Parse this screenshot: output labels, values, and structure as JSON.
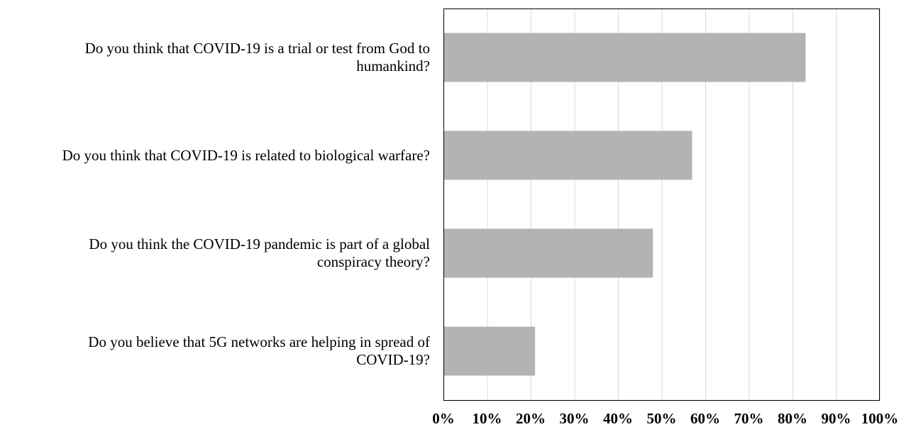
{
  "chart_data": {
    "type": "bar",
    "orientation": "horizontal",
    "categories": [
      "Do you think that COVID-19 is a trial or test from God to\nhumankind?",
      "Do you think that COVID-19 is related to biological warfare?",
      "Do you think the COVID-19 pandemic is part of a global\nconspiracy theory?",
      "Do you believe that 5G networks are helping in spread of\nCOVID-19?"
    ],
    "values": [
      83,
      57,
      48,
      21
    ],
    "title": "",
    "xlabel": "",
    "ylabel": "",
    "xlim": [
      0,
      100
    ],
    "xticks": [
      "0%",
      "10%",
      "20%",
      "30%",
      "40%",
      "50%",
      "60%",
      "70%",
      "80%",
      "90%",
      "100%"
    ],
    "grid": "vertical",
    "legend": "none",
    "bar_color": "#b3b3b3",
    "grid_color": "#d9d9d9",
    "axis_color": "#000000"
  }
}
